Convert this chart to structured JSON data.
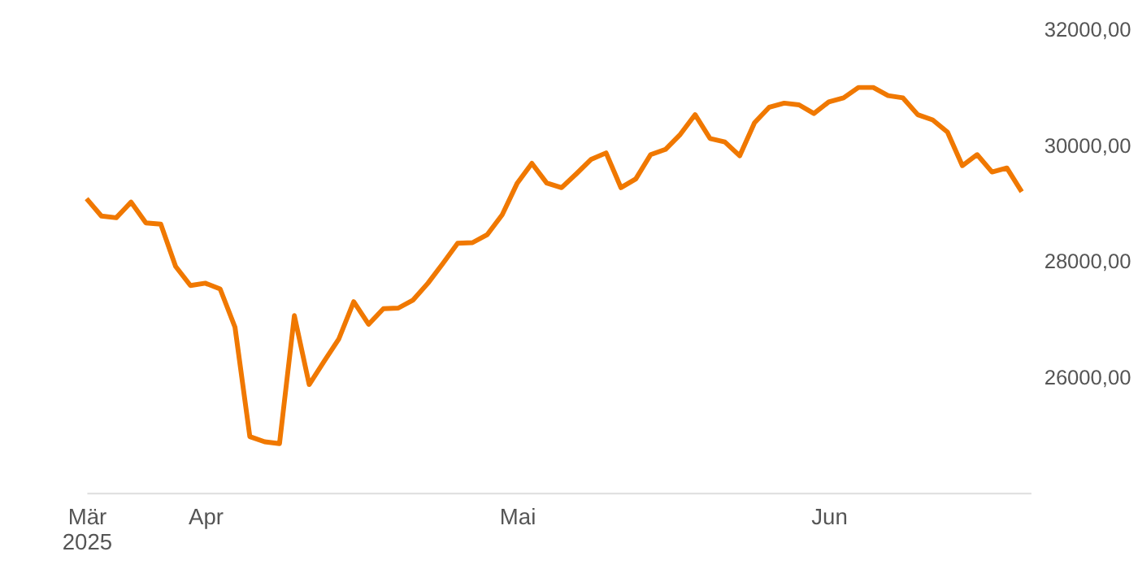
{
  "chart_data": {
    "type": "line",
    "categories": [
      "Mär 2025",
      null,
      null,
      null,
      null,
      null,
      null,
      null,
      "Apr",
      null,
      null,
      null,
      null,
      null,
      null,
      null,
      null,
      null,
      null,
      null,
      null,
      null,
      null,
      null,
      null,
      null,
      null,
      null,
      null,
      "Mai",
      null,
      null,
      null,
      null,
      null,
      null,
      null,
      null,
      null,
      null,
      null,
      null,
      null,
      null,
      null,
      null,
      null,
      null,
      null,
      null,
      "Jun",
      null,
      null,
      null,
      null,
      null,
      null,
      null,
      null,
      null,
      null,
      null,
      null,
      null
    ],
    "series": [
      {
        "color": "#f07800",
        "values": [
          29080,
          28780,
          28750,
          29020,
          28660,
          28640,
          27910,
          27580,
          27620,
          27520,
          26860,
          24970,
          24880,
          24850,
          27060,
          25870,
          26270,
          26660,
          27300,
          26910,
          27180,
          27190,
          27330,
          27620,
          27960,
          28310,
          28320,
          28460,
          28800,
          29340,
          29690,
          29350,
          29270,
          29510,
          29760,
          29870,
          29270,
          29420,
          29840,
          29930,
          30190,
          30530,
          30120,
          30060,
          29820,
          30390,
          30660,
          30730,
          30700,
          30550,
          30750,
          30820,
          31000,
          31000,
          30860,
          30820,
          30530,
          30440,
          30230,
          29650,
          29840,
          29540,
          29610,
          29200
        ]
      }
    ],
    "ylim": [
      24000,
      32000
    ],
    "yticks": [
      {
        "value": 26000,
        "label": "26000,00"
      },
      {
        "value": 28000,
        "label": "28000,00"
      },
      {
        "value": 30000,
        "label": "30000,00"
      },
      {
        "value": 32000,
        "label": "32000,00"
      }
    ],
    "grid": false,
    "legend": false,
    "marker": "none",
    "line_style": "solid"
  }
}
